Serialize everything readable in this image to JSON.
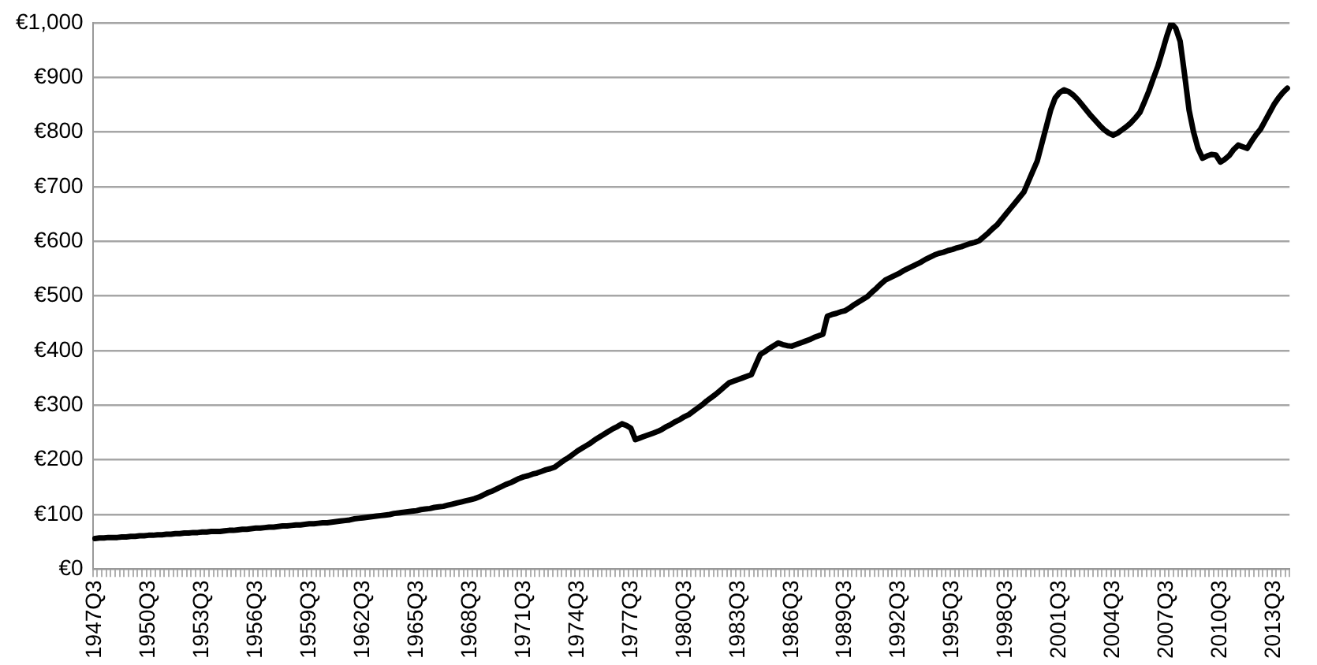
{
  "chart_data": {
    "type": "line",
    "categories": [
      "1947Q3",
      null,
      null,
      null,
      null,
      null,
      null,
      null,
      null,
      null,
      null,
      null,
      "1950Q3",
      null,
      null,
      null,
      null,
      null,
      null,
      null,
      null,
      null,
      null,
      null,
      "1953Q3",
      null,
      null,
      null,
      null,
      null,
      null,
      null,
      null,
      null,
      null,
      null,
      "1956Q3",
      null,
      null,
      null,
      null,
      null,
      null,
      null,
      null,
      null,
      null,
      null,
      "1959Q3",
      null,
      null,
      null,
      null,
      null,
      null,
      null,
      null,
      null,
      null,
      null,
      "1962Q3",
      null,
      null,
      null,
      null,
      null,
      null,
      null,
      null,
      null,
      null,
      null,
      "1965Q3",
      null,
      null,
      null,
      null,
      null,
      null,
      null,
      null,
      null,
      null,
      null,
      "1968Q3",
      null,
      null,
      null,
      null,
      null,
      null,
      null,
      null,
      null,
      null,
      null,
      "1971Q3",
      null,
      null,
      null,
      null,
      null,
      null,
      null,
      null,
      null,
      null,
      null,
      "1974Q3",
      null,
      null,
      null,
      null,
      null,
      null,
      null,
      null,
      null,
      null,
      null,
      "1977Q3",
      null,
      null,
      null,
      null,
      null,
      null,
      null,
      null,
      null,
      null,
      null,
      "1980Q3",
      null,
      null,
      null,
      null,
      null,
      null,
      null,
      null,
      null,
      null,
      null,
      "1983Q3",
      null,
      null,
      null,
      null,
      null,
      null,
      null,
      null,
      null,
      null,
      null,
      "1986Q3",
      null,
      null,
      null,
      null,
      null,
      null,
      null,
      null,
      null,
      null,
      null,
      "1989Q3",
      null,
      null,
      null,
      null,
      null,
      null,
      null,
      null,
      null,
      null,
      null,
      "1992Q3",
      null,
      null,
      null,
      null,
      null,
      null,
      null,
      null,
      null,
      null,
      null,
      "1995Q3",
      null,
      null,
      null,
      null,
      null,
      null,
      null,
      null,
      null,
      null,
      null,
      "1998Q3",
      null,
      null,
      null,
      null,
      null,
      null,
      null,
      null,
      null,
      null,
      null,
      "2001Q3",
      null,
      null,
      null,
      null,
      null,
      null,
      null,
      null,
      null,
      null,
      null,
      "2004Q3",
      null,
      null,
      null,
      null,
      null,
      null,
      null,
      null,
      null,
      null,
      null,
      "2007Q3",
      null,
      null,
      null,
      null,
      null,
      null,
      null,
      null,
      null,
      null,
      null,
      "2010Q3",
      null,
      null,
      null,
      null,
      null,
      null,
      null,
      null,
      null,
      null,
      null,
      "2013Q3",
      null,
      null,
      null
    ],
    "series": [
      {
        "color": "#000000",
        "values": [
          56,
          57,
          57,
          58,
          58,
          58,
          59,
          59,
          60,
          60,
          61,
          61,
          62,
          62,
          63,
          63,
          64,
          64,
          65,
          65,
          66,
          66,
          67,
          67,
          68,
          68,
          69,
          69,
          69,
          70,
          71,
          71,
          72,
          73,
          73,
          74,
          75,
          75,
          76,
          77,
          77,
          78,
          79,
          79,
          80,
          81,
          81,
          82,
          83,
          83,
          84,
          85,
          85,
          86,
          87,
          88,
          89,
          90,
          92,
          93,
          94,
          95,
          96,
          97,
          98,
          99,
          100,
          102,
          103,
          104,
          105,
          106,
          107,
          109,
          110,
          111,
          113,
          114,
          115,
          117,
          119,
          121,
          123,
          125,
          127,
          129,
          132,
          136,
          140,
          143,
          147,
          151,
          155,
          158,
          162,
          166,
          169,
          171,
          174,
          176,
          179,
          182,
          184,
          187,
          193,
          199,
          204,
          210,
          216,
          221,
          226,
          231,
          237,
          242,
          247,
          252,
          257,
          261,
          266,
          263,
          258,
          237,
          240,
          243,
          246,
          249,
          252,
          256,
          261,
          265,
          270,
          274,
          279,
          283,
          289,
          295,
          301,
          308,
          314,
          320,
          327,
          334,
          341,
          344,
          347,
          350,
          353,
          356,
          375,
          393,
          398,
          404,
          409,
          414,
          411,
          409,
          408,
          411,
          414,
          417,
          420,
          424,
          427,
          430,
          463,
          466,
          468,
          471,
          473,
          478,
          484,
          489,
          494,
          499,
          507,
          514,
          522,
          529,
          533,
          537,
          541,
          546,
          550,
          554,
          558,
          562,
          567,
          571,
          575,
          578,
          580,
          583,
          585,
          588,
          590,
          593,
          596,
          598,
          601,
          608,
          615,
          623,
          630,
          640,
          650,
          660,
          670,
          680,
          690,
          709,
          728,
          747,
          778,
          809,
          840,
          862,
          872,
          877,
          874,
          868,
          860,
          850,
          840,
          830,
          821,
          812,
          804,
          798,
          794,
          798,
          804,
          810,
          817,
          826,
          836,
          855,
          875,
          898,
          920,
          947,
          975,
          999,
          990,
          966,
          905,
          840,
          800,
          770,
          752,
          756,
          759,
          758,
          745,
          750,
          757,
          768,
          776,
          773,
          770,
          783,
          795,
          805,
          820,
          835,
          850,
          862,
          872,
          880
        ]
      }
    ],
    "ylim": [
      0,
      1000
    ],
    "yticks": [
      {
        "value": 0,
        "label": "€0"
      },
      {
        "value": 100,
        "label": "€100"
      },
      {
        "value": 200,
        "label": "€200"
      },
      {
        "value": 300,
        "label": "€300"
      },
      {
        "value": 400,
        "label": "€400"
      },
      {
        "value": 500,
        "label": "€500"
      },
      {
        "value": 600,
        "label": "€600"
      },
      {
        "value": 700,
        "label": "€700"
      },
      {
        "value": 800,
        "label": "€800"
      },
      {
        "value": 900,
        "label": "€900"
      },
      {
        "value": 1000,
        "label": "€1,000"
      }
    ],
    "grid": "y",
    "legend": false,
    "marker": "none",
    "line_style": "solid"
  }
}
